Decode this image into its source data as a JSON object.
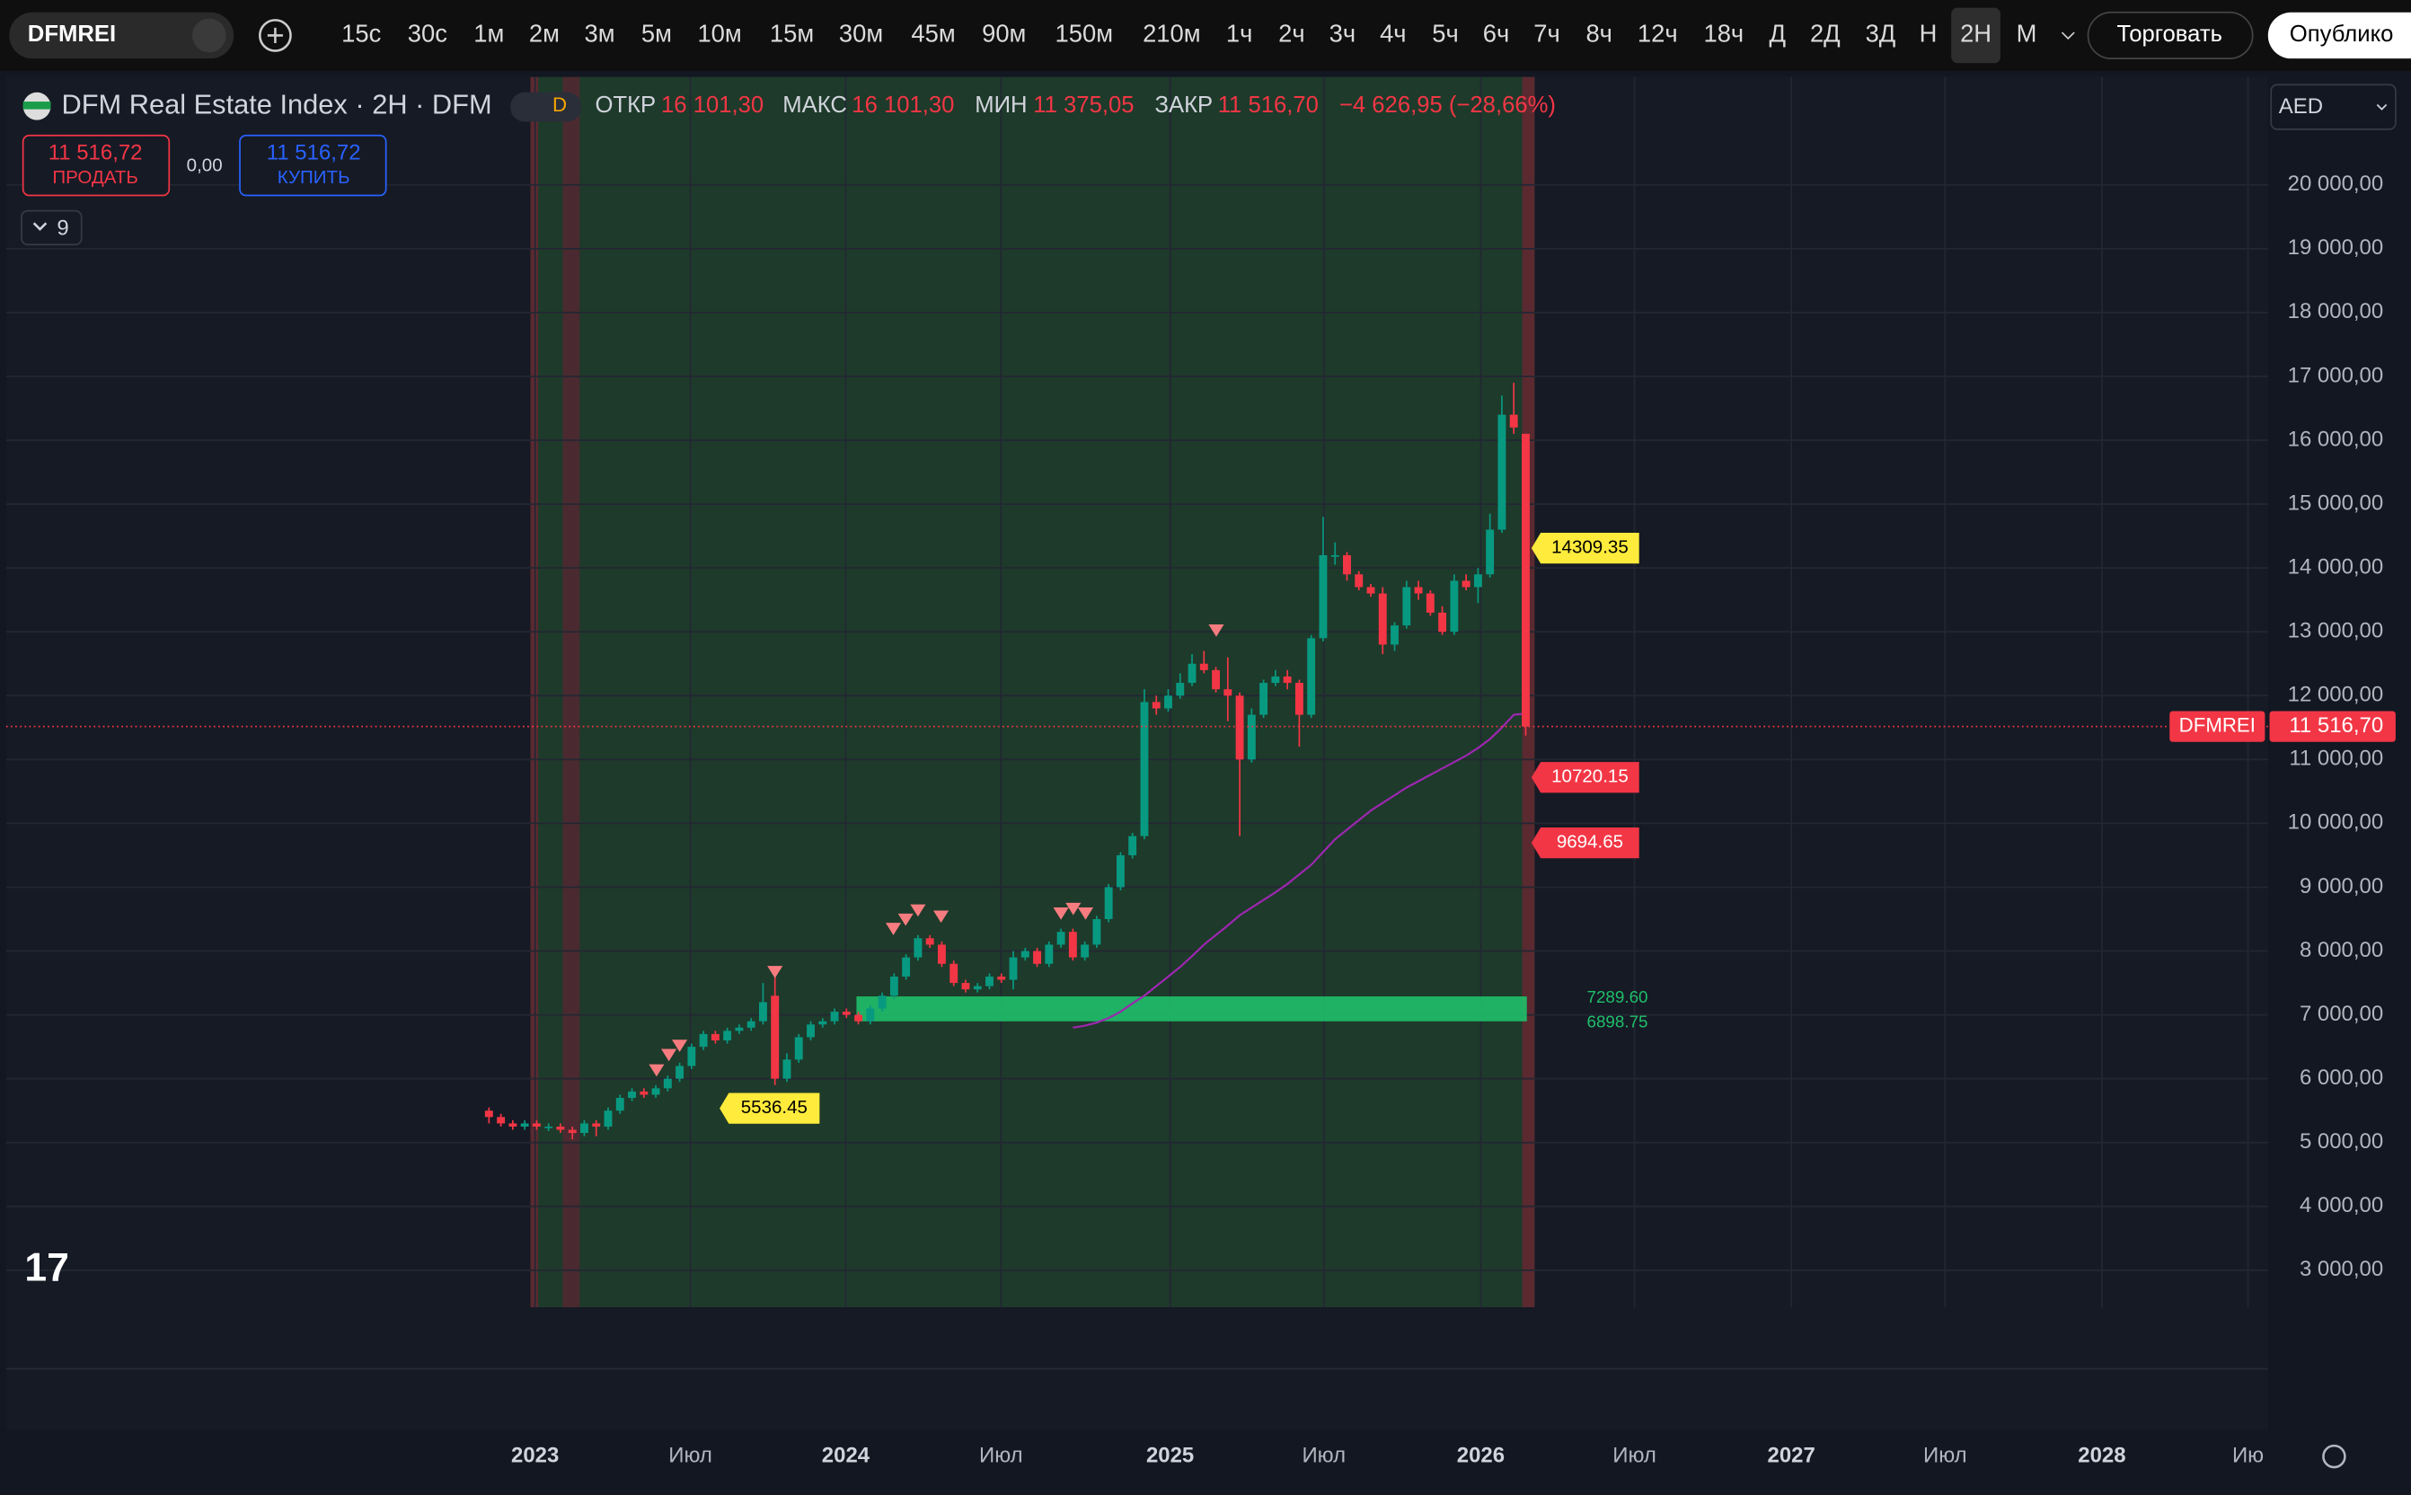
{
  "toolbar": {
    "symbol": "DFMREI",
    "intervals": [
      "15с",
      "30с",
      "1м",
      "2м",
      "3м",
      "5м",
      "10м",
      "15м",
      "30м",
      "45м",
      "90м",
      "150м",
      "210м",
      "1ч",
      "2ч",
      "3ч",
      "4ч",
      "5ч",
      "6ч",
      "7ч",
      "8ч",
      "12ч",
      "18ч",
      "Д",
      "2Д",
      "3Д",
      "Н",
      "2Н",
      "М"
    ],
    "active_interval": "2Н",
    "trade": "Торговать",
    "publish": "Опублико"
  },
  "legend": {
    "title": "DFM Real Estate Index · 2H · DFM",
    "badge": "D",
    "fields": [
      {
        "label": "ОТКР",
        "value": "16 101,30"
      },
      {
        "label": "МАКС",
        "value": "16 101,30"
      },
      {
        "label": "МИН",
        "value": "11 375,05"
      },
      {
        "label": "ЗАКР",
        "value": "11 516,70"
      }
    ],
    "change": "−4 626,95 (−28,66%)",
    "sell_price": "11 516,72",
    "sell_label": "ПРОДАТЬ",
    "spread": "0,00",
    "buy_price": "11 516,72",
    "buy_label": "КУПИТЬ",
    "indicators": "9"
  },
  "currency": "AED",
  "chart_data": {
    "type": "candlestick",
    "up_color": "#089981",
    "down_color": "#f23645",
    "candles": [
      [
        5500,
        5550,
        5300,
        5400
      ],
      [
        5400,
        5450,
        5250,
        5300
      ],
      [
        5300,
        5350,
        5200,
        5250
      ],
      [
        5250,
        5350,
        5200,
        5300
      ],
      [
        5300,
        5350,
        5200,
        5250
      ],
      [
        5250,
        5300,
        5180,
        5250
      ],
      [
        5250,
        5300,
        5150,
        5200
      ],
      [
        5200,
        5250,
        5050,
        5150
      ],
      [
        5150,
        5350,
        5100,
        5300
      ],
      [
        5300,
        5350,
        5100,
        5250
      ],
      [
        5250,
        5550,
        5200,
        5500
      ],
      [
        5500,
        5750,
        5450,
        5700
      ],
      [
        5700,
        5850,
        5650,
        5800
      ],
      [
        5800,
        5850,
        5700,
        5750
      ],
      [
        5750,
        5900,
        5700,
        5850
      ],
      [
        5850,
        6050,
        5800,
        6000
      ],
      [
        6000,
        6250,
        5950,
        6200
      ],
      [
        6200,
        6550,
        6150,
        6500
      ],
      [
        6500,
        6750,
        6450,
        6700
      ],
      [
        6700,
        6750,
        6550,
        6600
      ],
      [
        6600,
        6800,
        6550,
        6750
      ],
      [
        6750,
        6850,
        6700,
        6800
      ],
      [
        6800,
        6950,
        6750,
        6900
      ],
      [
        6900,
        7500,
        6850,
        7200
      ],
      [
        7300,
        7600,
        5900,
        6000
      ],
      [
        6000,
        6400,
        5950,
        6300
      ],
      [
        6300,
        6700,
        6250,
        6650
      ],
      [
        6650,
        6900,
        6600,
        6850
      ],
      [
        6850,
        6950,
        6800,
        6900
      ],
      [
        6900,
        7100,
        6850,
        7050
      ],
      [
        7050,
        7100,
        6950,
        7000
      ],
      [
        7000,
        7050,
        6850,
        6900
      ],
      [
        6900,
        7150,
        6850,
        7100
      ],
      [
        7100,
        7350,
        7050,
        7300
      ],
      [
        7300,
        7650,
        7250,
        7600
      ],
      [
        7600,
        7950,
        7550,
        7900
      ],
      [
        7900,
        8250,
        7850,
        8200
      ],
      [
        8200,
        8250,
        8050,
        8100
      ],
      [
        8100,
        8150,
        7750,
        7800
      ],
      [
        7800,
        7850,
        7450,
        7500
      ],
      [
        7500,
        7550,
        7350,
        7400
      ],
      [
        7400,
        7500,
        7350,
        7450
      ],
      [
        7450,
        7650,
        7400,
        7600
      ],
      [
        7600,
        7650,
        7500,
        7550
      ],
      [
        7550,
        8000,
        7400,
        7900
      ],
      [
        7900,
        8050,
        7850,
        8000
      ],
      [
        8000,
        8050,
        7750,
        7800
      ],
      [
        7800,
        8150,
        7750,
        8100
      ],
      [
        8100,
        8350,
        8050,
        8300
      ],
      [
        8300,
        8350,
        7850,
        7900
      ],
      [
        7900,
        8150,
        7850,
        8100
      ],
      [
        8100,
        8550,
        8050,
        8500
      ],
      [
        8500,
        9050,
        8450,
        9000
      ],
      [
        9000,
        9550,
        8950,
        9500
      ],
      [
        9500,
        9850,
        9450,
        9800
      ],
      [
        9800,
        12100,
        9750,
        11900
      ],
      [
        11900,
        12000,
        11700,
        11800
      ],
      [
        11800,
        12100,
        11750,
        12000
      ],
      [
        12000,
        12350,
        11950,
        12200
      ],
      [
        12200,
        12650,
        12150,
        12500
      ],
      [
        12500,
        12700,
        12350,
        12400
      ],
      [
        12400,
        12450,
        12050,
        12100
      ],
      [
        12100,
        12600,
        11600,
        12000
      ],
      [
        12000,
        12050,
        9800,
        11000
      ],
      [
        11000,
        11800,
        10950,
        11700
      ],
      [
        11700,
        12250,
        11650,
        12200
      ],
      [
        12200,
        12400,
        12150,
        12300
      ],
      [
        12300,
        12400,
        12100,
        12200
      ],
      [
        12200,
        12250,
        11200,
        11700
      ],
      [
        11700,
        12950,
        11650,
        12900
      ],
      [
        12900,
        14800,
        12850,
        14200
      ],
      [
        14200,
        14400,
        14050,
        14200
      ],
      [
        14200,
        14250,
        13800,
        13900
      ],
      [
        13900,
        13950,
        13650,
        13700
      ],
      [
        13700,
        13750,
        13550,
        13600
      ],
      [
        13600,
        13700,
        12650,
        12800
      ],
      [
        12800,
        13150,
        12700,
        13100
      ],
      [
        13100,
        13800,
        13050,
        13700
      ],
      [
        13700,
        13800,
        13500,
        13600
      ],
      [
        13600,
        13650,
        13250,
        13300
      ],
      [
        13300,
        13400,
        12950,
        13000
      ],
      [
        13000,
        13900,
        12950,
        13800
      ],
      [
        13800,
        13900,
        13650,
        13700
      ],
      [
        13700,
        14000,
        13450,
        13900
      ],
      [
        13900,
        14850,
        13850,
        14600
      ],
      [
        14600,
        16700,
        14550,
        16400
      ],
      [
        16400,
        16900,
        16100,
        16200
      ],
      [
        16101.3,
        16101.3,
        11375.05,
        11516.7
      ]
    ],
    "moving_average": {
      "color": "#9c27b0",
      "values": [
        null,
        null,
        null,
        null,
        null,
        null,
        null,
        null,
        null,
        null,
        null,
        null,
        null,
        null,
        null,
        null,
        null,
        null,
        null,
        null,
        null,
        null,
        null,
        null,
        null,
        null,
        null,
        null,
        null,
        null,
        null,
        null,
        null,
        null,
        null,
        null,
        null,
        null,
        null,
        null,
        null,
        null,
        null,
        null,
        null,
        null,
        null,
        null,
        null,
        6800,
        6830,
        6880,
        6950,
        7050,
        7180,
        7300,
        7450,
        7600,
        7750,
        7920,
        8100,
        8250,
        8400,
        8560,
        8680,
        8800,
        8920,
        9050,
        9200,
        9350,
        9550,
        9750,
        9900,
        10050,
        10200,
        10320,
        10440,
        10560,
        10660,
        10760,
        10860,
        10960,
        11060,
        11180,
        11320,
        11500,
        11700,
        11720
      ]
    },
    "ylim": [
      2420,
      21690
    ],
    "yticks": [
      {
        "value": 3000,
        "label": "3 000,00"
      },
      {
        "value": 4000,
        "label": "4 000,00"
      },
      {
        "value": 5000,
        "label": "5 000,00"
      },
      {
        "value": 6000,
        "label": "6 000,00"
      },
      {
        "value": 7000,
        "label": "7 000,00"
      },
      {
        "value": 8000,
        "label": "8 000,00"
      },
      {
        "value": 9000,
        "label": "9 000,00"
      },
      {
        "value": 10000,
        "label": "10 000,00"
      },
      {
        "value": 11000,
        "label": "11 000,00"
      },
      {
        "value": 12000,
        "label": "12 000,00"
      },
      {
        "value": 13000,
        "label": "13 000,00"
      },
      {
        "value": 14000,
        "label": "14 000,00"
      },
      {
        "value": 15000,
        "label": "15 000,00"
      },
      {
        "value": 16000,
        "label": "16 000,00"
      },
      {
        "value": 17000,
        "label": "17 000,00"
      },
      {
        "value": 18000,
        "label": "18 000,00"
      },
      {
        "value": 19000,
        "label": "19 000,00"
      },
      {
        "value": 20000,
        "label": "20 000,00"
      }
    ],
    "last_price": {
      "symbol": "DFMREI",
      "value": 11516.7,
      "label": "11 516,70",
      "color": "#f23645"
    },
    "price_labels": [
      {
        "value": 14309.35,
        "color": "#ffeb3b"
      },
      {
        "value": 10720.15,
        "color": "#f23645"
      },
      {
        "value": 9694.65,
        "color": "#f23645"
      },
      {
        "value": 5536.45,
        "color": "#ffeb3b"
      }
    ],
    "zone": {
      "top": {
        "value": 7289.6,
        "label": "7289.60"
      },
      "bottom": {
        "value": 6898.75,
        "label": "6898.75"
      },
      "color": "#1fbf6a"
    },
    "x_labels": [
      "2023",
      "Июл",
      "2024",
      "Июл",
      "2025",
      "Июл",
      "2026",
      "Июл",
      "2027",
      "Июл",
      "2028",
      "Ию"
    ]
  }
}
